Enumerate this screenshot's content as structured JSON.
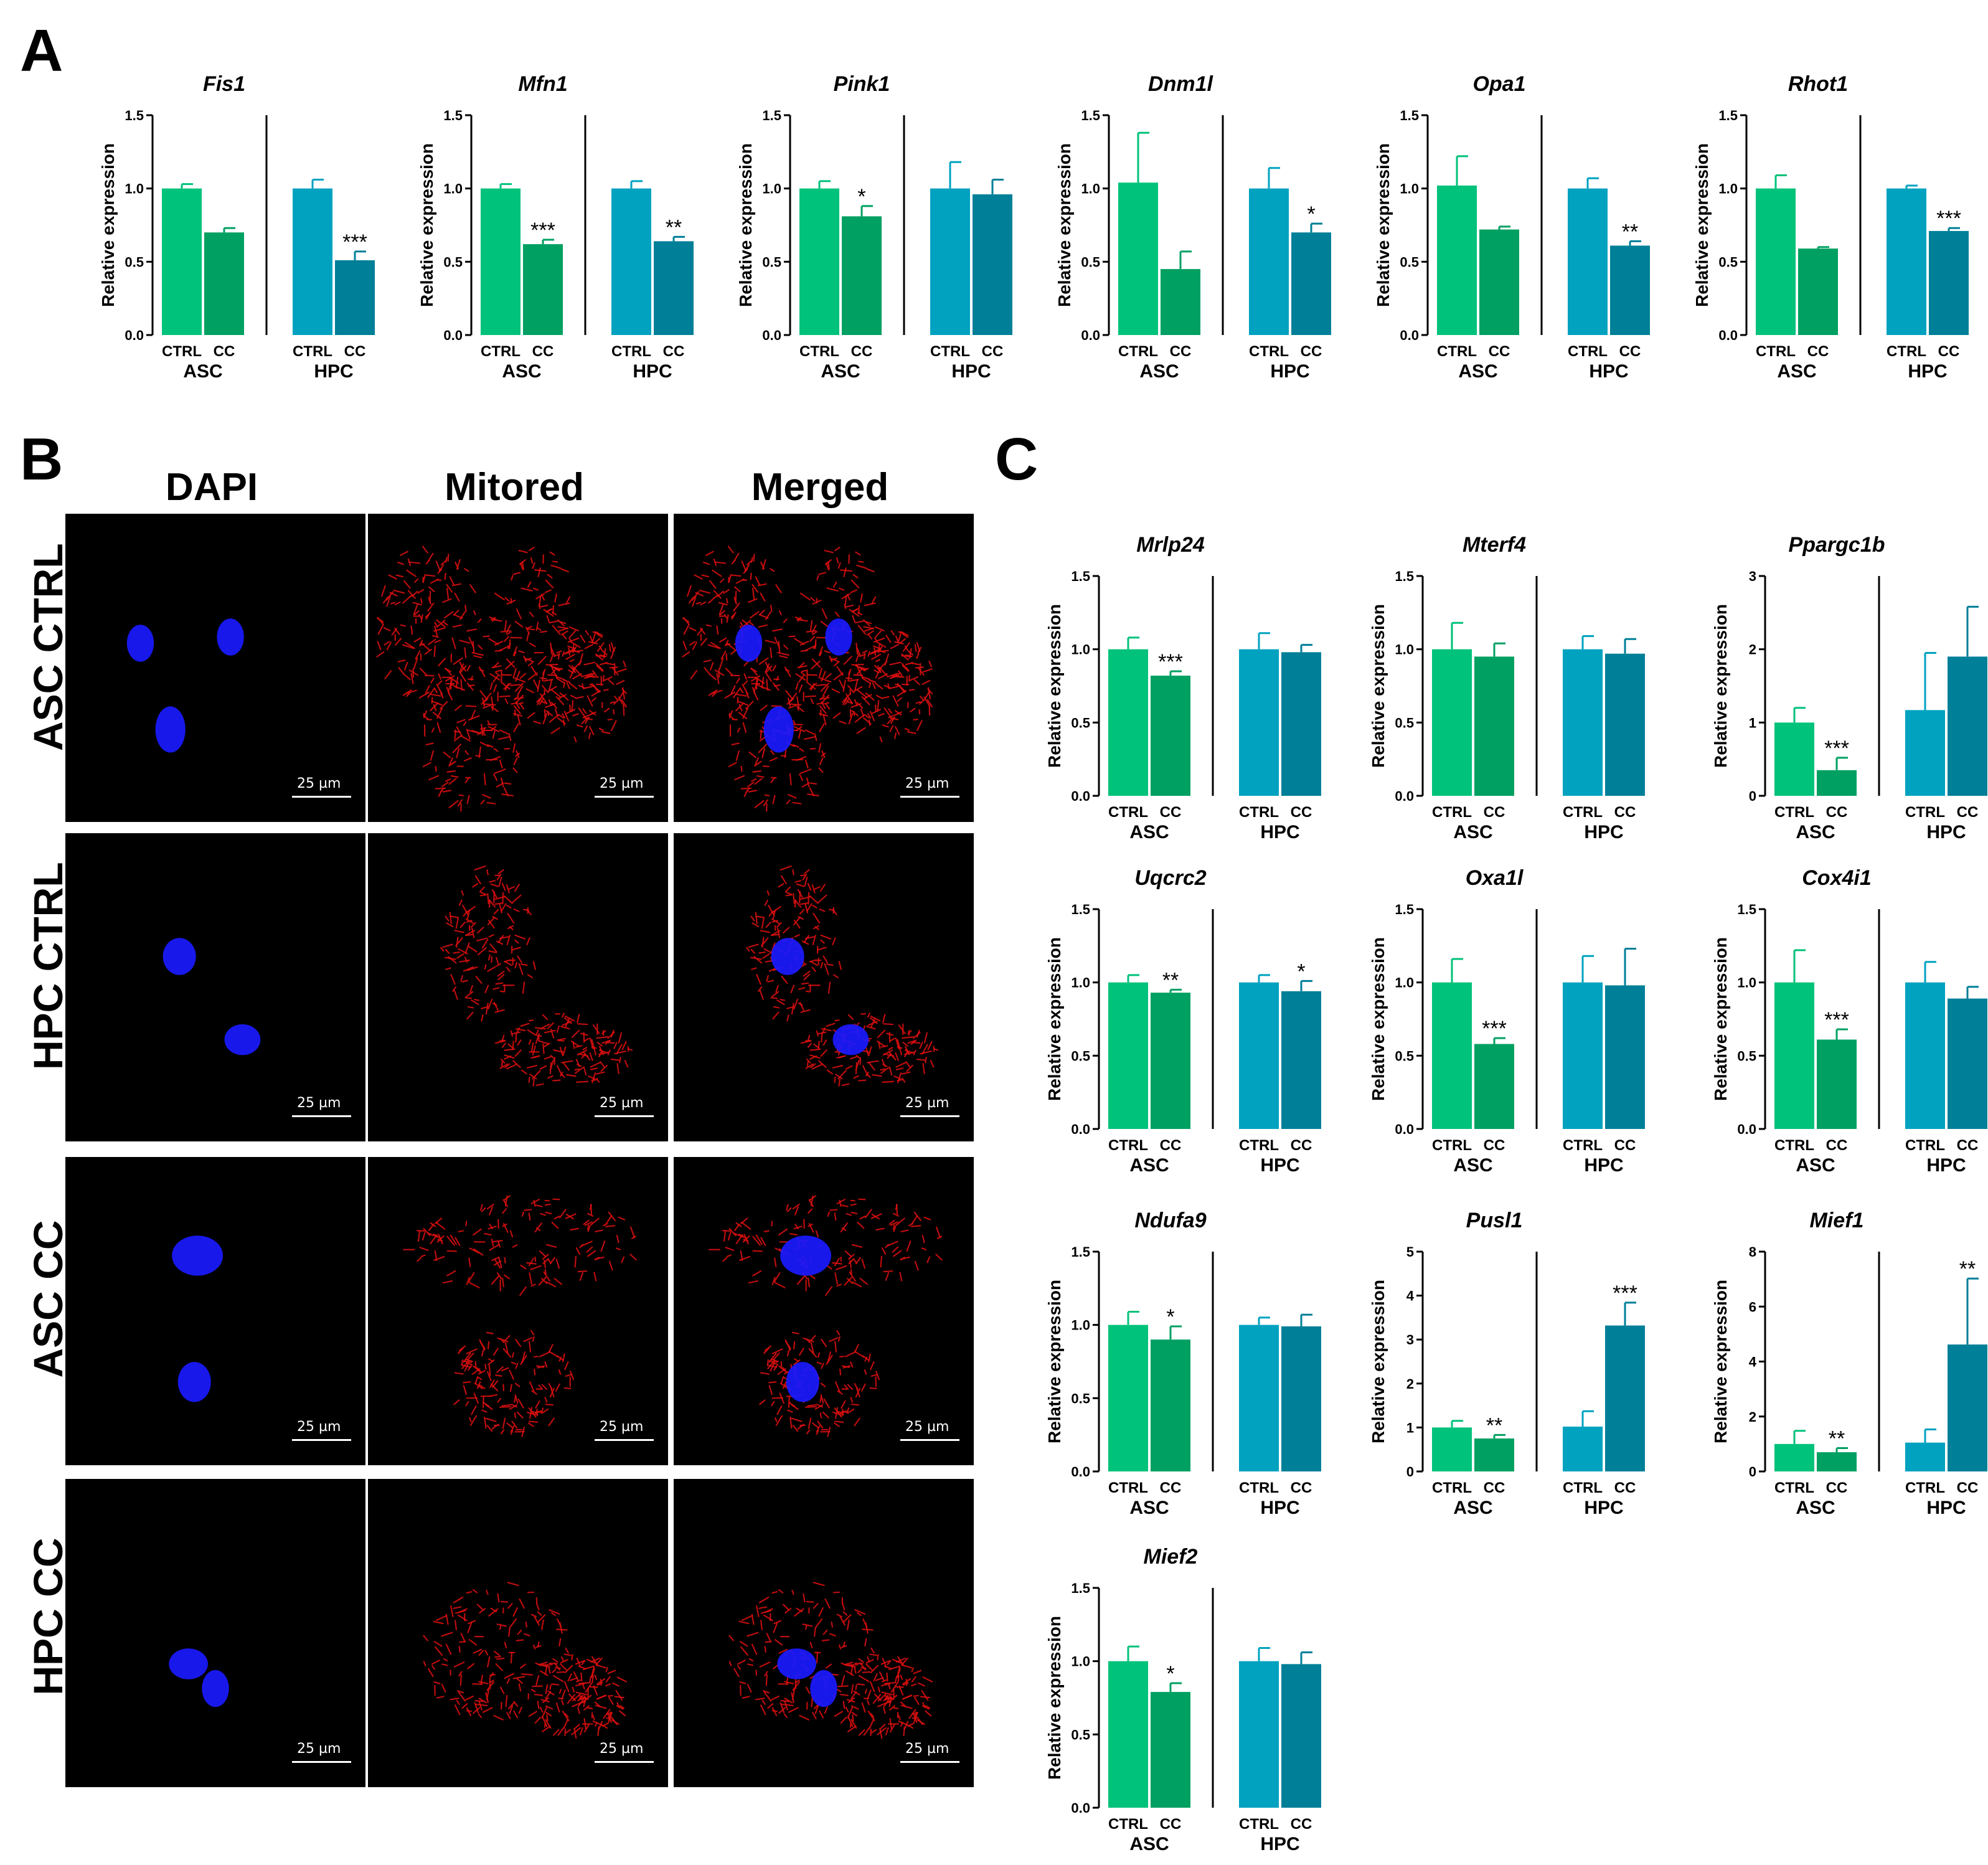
{
  "panel_labels": {
    "a": "A",
    "b": "B",
    "c": "C"
  },
  "colors": {
    "asc_ctrl": "#00c27a",
    "asc_cc": "#00a062",
    "hpc_ctrl": "#00a2c0",
    "hpc_cc": "#007f98",
    "nucleus": "#1a1aff",
    "mito": "#e01010"
  },
  "microscopy": {
    "columns": [
      "DAPI",
      "Mitored",
      "Merged"
    ],
    "rows": [
      "ASC CTRL",
      "HPC CTRL",
      "ASC CC",
      "HPC CC"
    ],
    "scale_bar": "25 µm"
  },
  "chart_data": [
    {
      "panel": "A",
      "type": "bar",
      "title": "Fis1",
      "ylabel": "Relative expression",
      "ylim": [
        0,
        1.5
      ],
      "yticks": [
        "0.0",
        "0.5",
        "1.0",
        "1.5"
      ],
      "categories": [
        "CTRL",
        "CC",
        "CTRL",
        "CC"
      ],
      "groups": [
        "ASC",
        "HPC"
      ],
      "values": [
        1.0,
        0.7,
        1.0,
        0.51
      ],
      "errors": [
        0.03,
        0.03,
        0.06,
        0.06
      ],
      "significance": [
        "",
        "",
        "",
        "***"
      ]
    },
    {
      "panel": "A",
      "type": "bar",
      "title": "Mfn1",
      "ylabel": "Relative expression",
      "ylim": [
        0,
        1.5
      ],
      "yticks": [
        "0.0",
        "0.5",
        "1.0",
        "1.5"
      ],
      "categories": [
        "CTRL",
        "CC",
        "CTRL",
        "CC"
      ],
      "groups": [
        "ASC",
        "HPC"
      ],
      "values": [
        1.0,
        0.62,
        1.0,
        0.64
      ],
      "errors": [
        0.03,
        0.03,
        0.05,
        0.03
      ],
      "significance": [
        "",
        "***",
        "",
        "**"
      ]
    },
    {
      "panel": "A",
      "type": "bar",
      "title": "Pink1",
      "ylabel": "Relative expression",
      "ylim": [
        0,
        1.5
      ],
      "yticks": [
        "0.0",
        "0.5",
        "1.0",
        "1.5"
      ],
      "categories": [
        "CTRL",
        "CC",
        "CTRL",
        "CC"
      ],
      "groups": [
        "ASC",
        "HPC"
      ],
      "values": [
        1.0,
        0.81,
        1.0,
        0.96
      ],
      "errors": [
        0.05,
        0.07,
        0.18,
        0.1
      ],
      "significance": [
        "",
        "*",
        "",
        ""
      ]
    },
    {
      "panel": "A",
      "type": "bar",
      "title": "Dnm1l",
      "ylabel": "Relative expression",
      "ylim": [
        0,
        1.5
      ],
      "yticks": [
        "0.0",
        "0.5",
        "1.0",
        "1.5"
      ],
      "categories": [
        "CTRL",
        "CC",
        "CTRL",
        "CC"
      ],
      "groups": [
        "ASC",
        "HPC"
      ],
      "values": [
        1.04,
        0.45,
        1.0,
        0.7
      ],
      "errors": [
        0.34,
        0.12,
        0.14,
        0.06
      ],
      "significance": [
        "",
        "",
        "",
        "*"
      ]
    },
    {
      "panel": "A",
      "type": "bar",
      "title": "Opa1",
      "ylabel": "Relative expression",
      "ylim": [
        0,
        1.5
      ],
      "yticks": [
        "0.0",
        "0.5",
        "1.0",
        "1.5"
      ],
      "categories": [
        "CTRL",
        "CC",
        "CTRL",
        "CC"
      ],
      "groups": [
        "ASC",
        "HPC"
      ],
      "values": [
        1.02,
        0.72,
        1.0,
        0.61
      ],
      "errors": [
        0.2,
        0.02,
        0.07,
        0.03
      ],
      "significance": [
        "",
        "",
        "",
        "**"
      ]
    },
    {
      "panel": "A",
      "type": "bar",
      "title": "Rhot1",
      "ylabel": "Relative expression",
      "ylim": [
        0,
        1.5
      ],
      "yticks": [
        "0.0",
        "0.5",
        "1.0",
        "1.5"
      ],
      "categories": [
        "CTRL",
        "CC",
        "CTRL",
        "CC"
      ],
      "groups": [
        "ASC",
        "HPC"
      ],
      "values": [
        1.0,
        0.59,
        1.0,
        0.71
      ],
      "errors": [
        0.09,
        0.01,
        0.02,
        0.02
      ],
      "significance": [
        "",
        "",
        "",
        "***"
      ]
    },
    {
      "panel": "C",
      "type": "bar",
      "title": "Mrlp24",
      "ylabel": "Relative expression",
      "ylim": [
        0,
        1.5
      ],
      "yticks": [
        "0.0",
        "0.5",
        "1.0",
        "1.5"
      ],
      "categories": [
        "CTRL",
        "CC",
        "CTRL",
        "CC"
      ],
      "groups": [
        "ASC",
        "HPC"
      ],
      "values": [
        1.0,
        0.82,
        1.0,
        0.98
      ],
      "errors": [
        0.08,
        0.03,
        0.11,
        0.05
      ],
      "significance": [
        "",
        "***",
        "",
        ""
      ]
    },
    {
      "panel": "C",
      "type": "bar",
      "title": "Mterf4",
      "ylabel": "Relative expression",
      "ylim": [
        0,
        1.5
      ],
      "yticks": [
        "0.0",
        "0.5",
        "1.0",
        "1.5"
      ],
      "categories": [
        "CTRL",
        "CC",
        "CTRL",
        "CC"
      ],
      "groups": [
        "ASC",
        "HPC"
      ],
      "values": [
        1.0,
        0.95,
        1.0,
        0.97
      ],
      "errors": [
        0.18,
        0.09,
        0.09,
        0.1
      ],
      "significance": [
        "",
        "",
        "",
        ""
      ]
    },
    {
      "panel": "C",
      "type": "bar",
      "title": "Ppargc1b",
      "ylabel": "Relative expression",
      "ylim": [
        0,
        3
      ],
      "yticks": [
        "0",
        "1",
        "2",
        "3"
      ],
      "categories": [
        "CTRL",
        "CC",
        "CTRL",
        "CC"
      ],
      "groups": [
        "ASC",
        "HPC"
      ],
      "values": [
        1.0,
        0.35,
        1.17,
        1.9
      ],
      "errors": [
        0.2,
        0.17,
        0.78,
        0.68
      ],
      "significance": [
        "",
        "***",
        "",
        ""
      ]
    },
    {
      "panel": "C",
      "type": "bar",
      "title": "Uqcrc2",
      "ylabel": "Relative expression",
      "ylim": [
        0,
        1.5
      ],
      "yticks": [
        "0.0",
        "0.5",
        "1.0",
        "1.5"
      ],
      "categories": [
        "CTRL",
        "CC",
        "CTRL",
        "CC"
      ],
      "groups": [
        "ASC",
        "HPC"
      ],
      "values": [
        1.0,
        0.93,
        1.0,
        0.94
      ],
      "errors": [
        0.05,
        0.02,
        0.05,
        0.07
      ],
      "significance": [
        "",
        "**",
        "",
        "*"
      ]
    },
    {
      "panel": "C",
      "type": "bar",
      "title": "Oxa1l",
      "ylabel": "Relative expression",
      "ylim": [
        0,
        1.5
      ],
      "yticks": [
        "0.0",
        "0.5",
        "1.0",
        "1.5"
      ],
      "categories": [
        "CTRL",
        "CC",
        "CTRL",
        "CC"
      ],
      "groups": [
        "ASC",
        "HPC"
      ],
      "values": [
        1.0,
        0.58,
        1.0,
        0.98
      ],
      "errors": [
        0.16,
        0.04,
        0.18,
        0.25
      ],
      "significance": [
        "",
        "***",
        "",
        ""
      ]
    },
    {
      "panel": "C",
      "type": "bar",
      "title": "Cox4i1",
      "ylabel": "Relative expression",
      "ylim": [
        0,
        1.5
      ],
      "yticks": [
        "0.0",
        "0.5",
        "1.0",
        "1.5"
      ],
      "categories": [
        "CTRL",
        "CC",
        "CTRL",
        "CC"
      ],
      "groups": [
        "ASC",
        "HPC"
      ],
      "values": [
        1.0,
        0.61,
        1.0,
        0.89
      ],
      "errors": [
        0.22,
        0.07,
        0.14,
        0.08
      ],
      "significance": [
        "",
        "***",
        "",
        ""
      ]
    },
    {
      "panel": "C",
      "type": "bar",
      "title": "Ndufa9",
      "ylabel": "Relative expression",
      "ylim": [
        0,
        1.5
      ],
      "yticks": [
        "0.0",
        "0.5",
        "1.0",
        "1.5"
      ],
      "categories": [
        "CTRL",
        "CC",
        "CTRL",
        "CC"
      ],
      "groups": [
        "ASC",
        "HPC"
      ],
      "values": [
        1.0,
        0.9,
        1.0,
        0.99
      ],
      "errors": [
        0.09,
        0.09,
        0.05,
        0.08
      ],
      "significance": [
        "",
        "*",
        "",
        ""
      ]
    },
    {
      "panel": "C",
      "type": "bar",
      "title": "Pusl1",
      "ylabel": "Relative expression",
      "ylim": [
        0,
        5
      ],
      "yticks": [
        "0",
        "1",
        "2",
        "3",
        "4",
        "5"
      ],
      "categories": [
        "CTRL",
        "CC",
        "CTRL",
        "CC"
      ],
      "groups": [
        "ASC",
        "HPC"
      ],
      "values": [
        1.0,
        0.75,
        1.02,
        3.32
      ],
      "errors": [
        0.15,
        0.08,
        0.35,
        0.52
      ],
      "significance": [
        "",
        "**",
        "",
        "***"
      ]
    },
    {
      "panel": "C",
      "type": "bar",
      "title": "Mief1",
      "ylabel": "Relative expression",
      "ylim": [
        0,
        8
      ],
      "yticks": [
        "0",
        "2",
        "4",
        "6",
        "8"
      ],
      "categories": [
        "CTRL",
        "CC",
        "CTRL",
        "CC"
      ],
      "groups": [
        "ASC",
        "HPC"
      ],
      "values": [
        1.0,
        0.7,
        1.05,
        4.62
      ],
      "errors": [
        0.48,
        0.15,
        0.48,
        2.4
      ],
      "significance": [
        "",
        "**",
        "",
        "**"
      ]
    },
    {
      "panel": "C",
      "type": "bar",
      "title": "Mief2",
      "ylabel": "Relative expression",
      "ylim": [
        0,
        1.5
      ],
      "yticks": [
        "0.0",
        "0.5",
        "1.0",
        "1.5"
      ],
      "categories": [
        "CTRL",
        "CC",
        "CTRL",
        "CC"
      ],
      "groups": [
        "ASC",
        "HPC"
      ],
      "values": [
        1.0,
        0.79,
        1.0,
        0.98
      ],
      "errors": [
        0.1,
        0.06,
        0.09,
        0.08
      ],
      "significance": [
        "",
        "*",
        "",
        ""
      ]
    }
  ]
}
